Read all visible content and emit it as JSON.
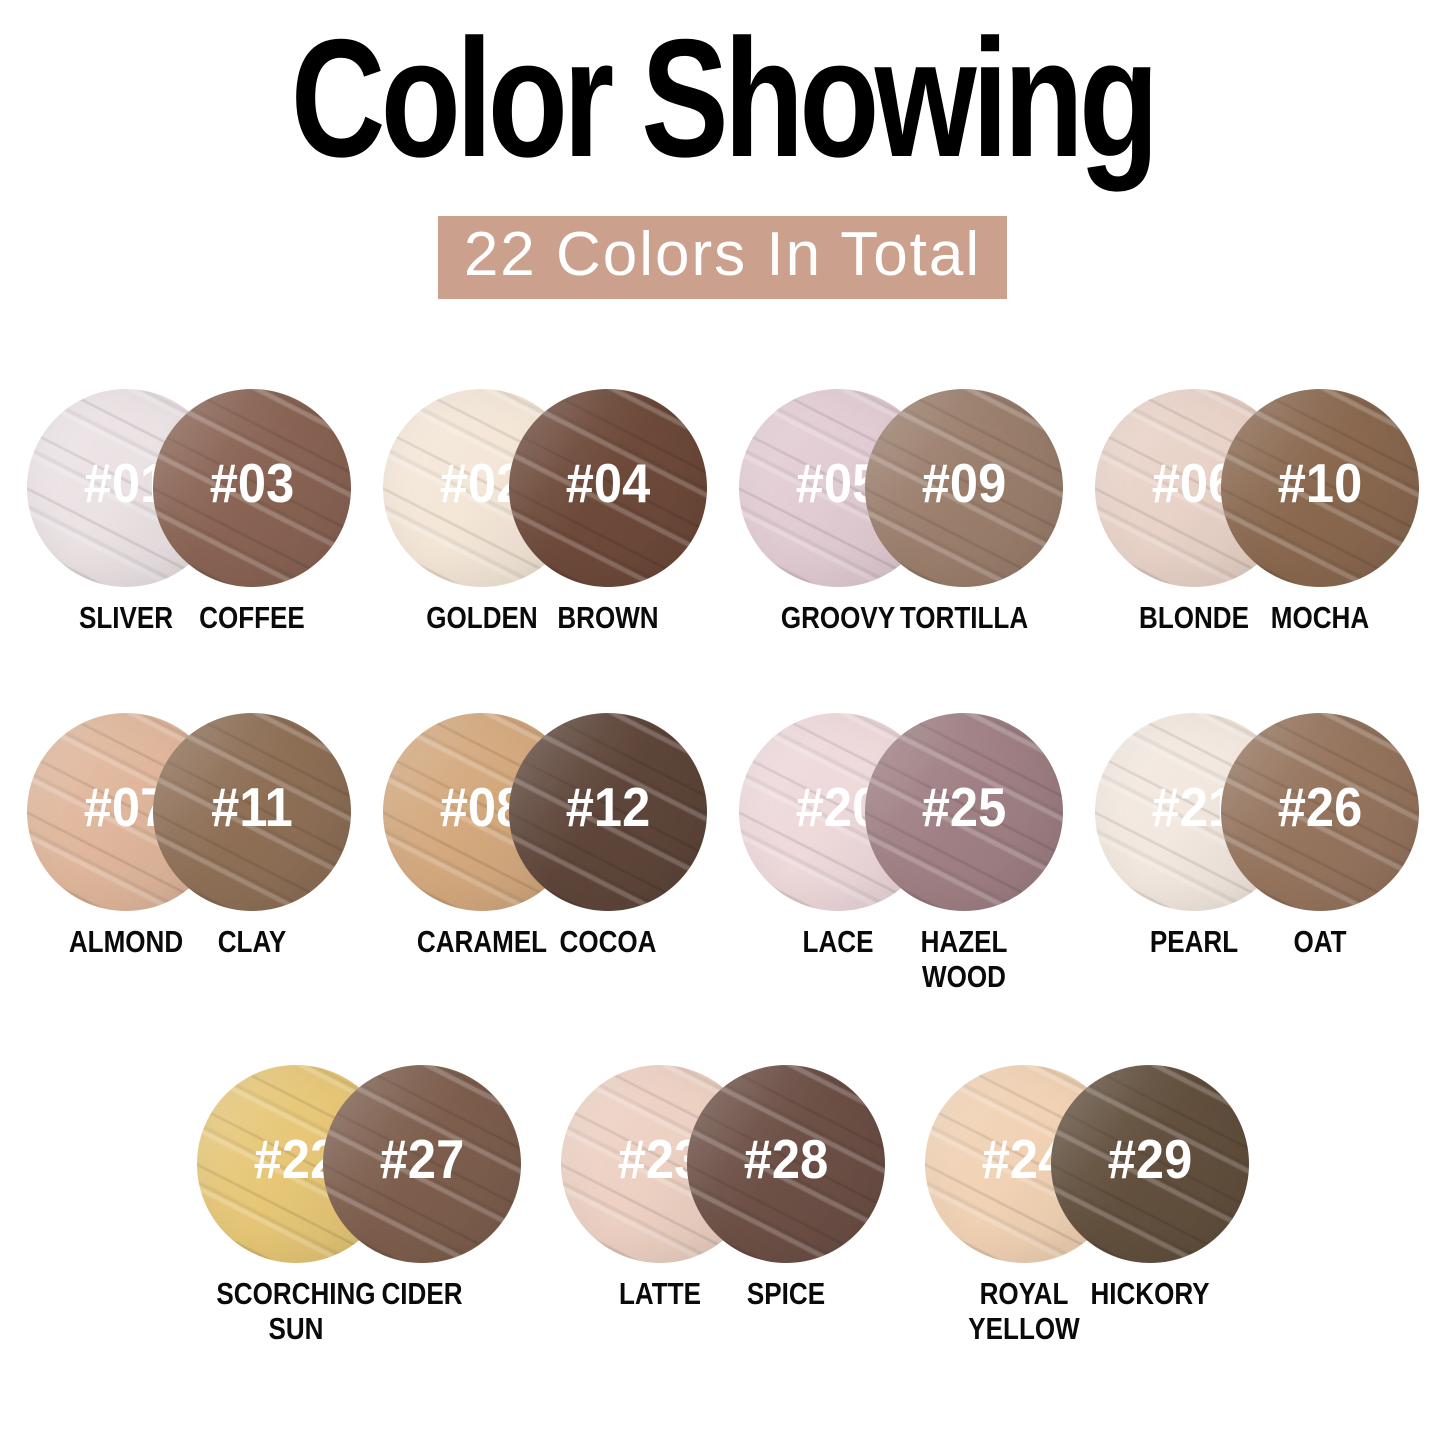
{
  "title": "Color Showing",
  "subtitle": "22 Colors In Total",
  "subtitle_bg": "#cba18e",
  "rows": [
    {
      "pairs": [
        {
          "left": {
            "number": "#01",
            "name": "SLIVER",
            "color": "#ebe2e4"
          },
          "right": {
            "number": "#03",
            "name": "COFFEE",
            "color": "#8a6454"
          }
        },
        {
          "left": {
            "number": "#02",
            "name": "GOLDEN",
            "color": "#f4e7d8"
          },
          "right": {
            "number": "#04",
            "name": "BROWN",
            "color": "#6e4a3a"
          }
        },
        {
          "left": {
            "number": "#05",
            "name": "GROOVY",
            "color": "#e2ccd3"
          },
          "right": {
            "number": "#09",
            "name": "TORTILLA",
            "color": "#9c7f6d"
          }
        },
        {
          "left": {
            "number": "#06",
            "name": "BLONDE",
            "color": "#e9d3c8"
          },
          "right": {
            "number": "#10",
            "name": "MOCHA",
            "color": "#8b6950"
          }
        }
      ]
    },
    {
      "pairs": [
        {
          "left": {
            "number": "#07",
            "name": "ALMOND",
            "color": "#e0b79c"
          },
          "right": {
            "number": "#11",
            "name": "CLAY",
            "color": "#8f7057"
          }
        },
        {
          "left": {
            "number": "#08",
            "name": "CARAMEL",
            "color": "#d4a97e"
          },
          "right": {
            "number": "#12",
            "name": "COCOA",
            "color": "#5f463a"
          }
        },
        {
          "left": {
            "number": "#20",
            "name": "LACE",
            "color": "#eed9db"
          },
          "right": {
            "number": "#25",
            "name": "HAZEL\nWOOD",
            "color": "#a08084"
          }
        },
        {
          "left": {
            "number": "#21",
            "name": "PEARL",
            "color": "#f2e8df"
          },
          "right": {
            "number": "#26",
            "name": "OAT",
            "color": "#96755e"
          }
        }
      ]
    },
    {
      "pairs": [
        {
          "left": {
            "number": "#22",
            "name": "SCORCHING\nSUN",
            "color": "#e7c777"
          },
          "right": {
            "number": "#27",
            "name": "CIDER",
            "color": "#7e5f4e"
          }
        },
        {
          "left": {
            "number": "#23",
            "name": "LATTE",
            "color": "#edd1c3"
          },
          "right": {
            "number": "#28",
            "name": "SPICE",
            "color": "#6d5046"
          }
        },
        {
          "left": {
            "number": "#24",
            "name": "ROYAL\nYELLOW",
            "color": "#f1d2b4"
          },
          "right": {
            "number": "#29",
            "name": "HICKORY",
            "color": "#63503e"
          }
        }
      ]
    }
  ]
}
